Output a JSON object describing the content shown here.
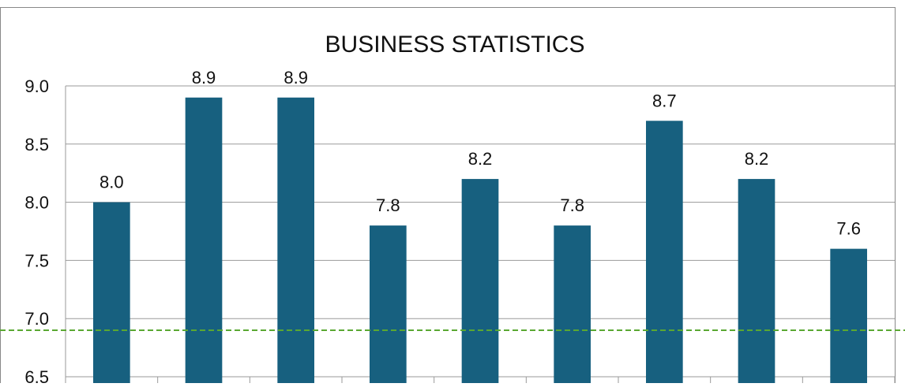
{
  "chart_data": {
    "type": "bar",
    "title": "BUSINESS STATISTICS",
    "xlabel": "",
    "ylabel": "",
    "categories": [
      "",
      "",
      "",
      "",
      "",
      "",
      "",
      "",
      ""
    ],
    "values": [
      8.0,
      8.9,
      8.9,
      7.8,
      8.2,
      7.8,
      8.7,
      8.2,
      7.6
    ],
    "bar_label_values": [
      "8.0",
      "8.9",
      "8.9",
      "7.8",
      "8.2",
      "7.8",
      "8.7",
      "8.2",
      "7.6"
    ],
    "y_ticks": [
      6.5,
      7.0,
      7.5,
      8.0,
      8.5,
      9.0
    ],
    "y_tick_labels": [
      "6.5",
      "7.0",
      "7.5",
      "8.0",
      "8.5",
      "9.0"
    ],
    "ylim": [
      6.5,
      9.0
    ],
    "reference_line": {
      "value": 6.9,
      "style": "dashed"
    },
    "grid": true,
    "legend": "none",
    "colors": {
      "bar": "#17607f",
      "reference_line": "#5aa832",
      "grid": "#9a9a9a",
      "text": "#111111",
      "frame": "#888888"
    }
  }
}
